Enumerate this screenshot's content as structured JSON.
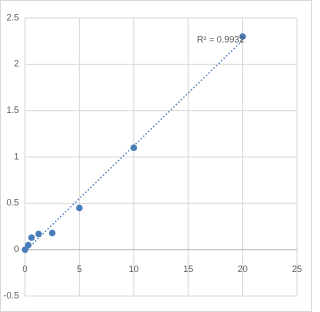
{
  "chart_data": {
    "type": "scatter",
    "x": [
      0,
      0.3,
      0.6,
      1.25,
      2.5,
      5,
      10,
      20
    ],
    "values": [
      0.0,
      0.05,
      0.13,
      0.17,
      0.18,
      0.45,
      1.1,
      2.3
    ],
    "color": "#4a7ebb",
    "trendline": true,
    "annotation": "R² = 0.9932",
    "xlim": [
      0,
      25
    ],
    "xticks": [
      0,
      5,
      10,
      15,
      20,
      25
    ],
    "ylim": [
      -0.5,
      2.5
    ],
    "yticks": [
      -0.5,
      0,
      0.5,
      1,
      1.5,
      2,
      2.5
    ],
    "grid": true
  }
}
